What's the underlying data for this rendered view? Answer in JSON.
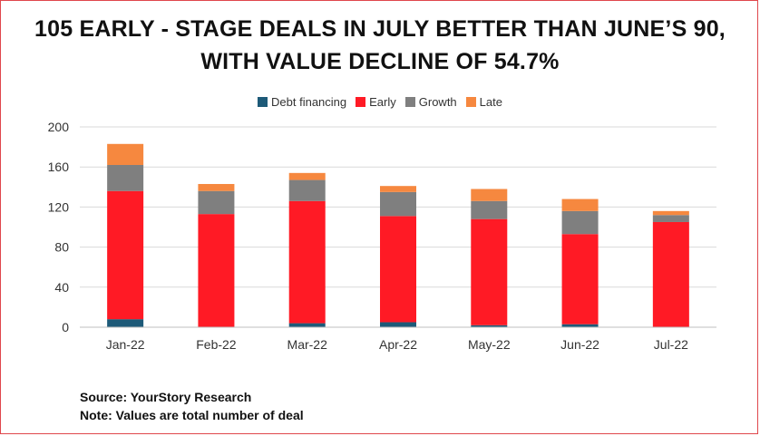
{
  "title_line1": "105 EARLY - STAGE DEALS IN JULY BETTER THAN JUNE’S 90,",
  "title_line2": "WITH VALUE DECLINE OF 54.7%",
  "source": "Source: YourStory Research",
  "note": "Note: Values are total number of deal",
  "chart_data": {
    "type": "bar",
    "stacked": true,
    "categories": [
      "Jan-22",
      "Feb-22",
      "Mar-22",
      "Apr-22",
      "May-22",
      "Jun-22",
      "Jul-22"
    ],
    "series": [
      {
        "name": "Debt financing",
        "color": "#1d5a78",
        "values": [
          8,
          0,
          4,
          5,
          2,
          3,
          0
        ]
      },
      {
        "name": "Early",
        "color": "#ff1a25",
        "values": [
          128,
          113,
          122,
          106,
          106,
          90,
          105
        ]
      },
      {
        "name": "Growth",
        "color": "#7f7f7f",
        "values": [
          26,
          23,
          21,
          24,
          18,
          23,
          7
        ]
      },
      {
        "name": "Late",
        "color": "#f6883f",
        "values": [
          21,
          7,
          7,
          6,
          12,
          12,
          4
        ]
      }
    ],
    "ylim": [
      0,
      200
    ],
    "yticks": [
      0,
      40,
      80,
      120,
      160,
      200
    ],
    "grid": true,
    "legend": "top-center"
  }
}
